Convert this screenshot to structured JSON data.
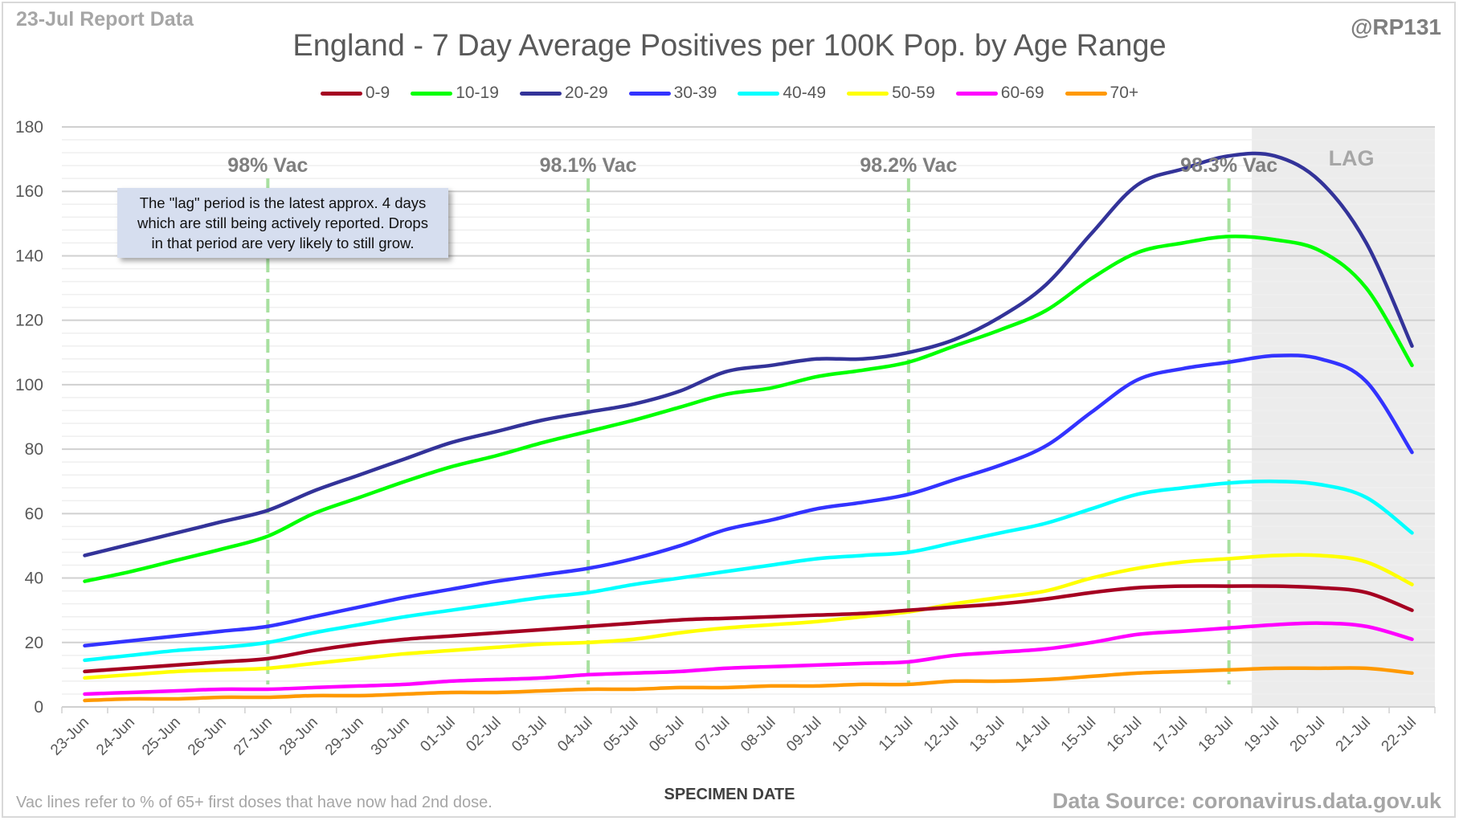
{
  "header": {
    "report_label": "23-Jul Report Data",
    "handle": "@RP131"
  },
  "footer": {
    "note": "Vac lines refer to % of 65+ first doses that have now had 2nd dose.",
    "source": "Data Source: coronavirus.data.gov.uk"
  },
  "annotation": {
    "lines": [
      "The \"lag\" period is the latest approx. 4 days",
      "which are still being actively reported. Drops",
      "in that period are very likely to still grow."
    ]
  },
  "chart_data": {
    "type": "line",
    "title": "England - 7 Day Average Positives per 100K Pop. by Age Range",
    "xlabel": "SPECIMEN DATE",
    "ylabel": "",
    "ylim": [
      0,
      180
    ],
    "yticks": [
      0,
      20,
      40,
      60,
      80,
      100,
      120,
      140,
      160,
      180
    ],
    "grid": true,
    "legend_position": "top",
    "categories": [
      "23-Jun",
      "24-Jun",
      "25-Jun",
      "26-Jun",
      "27-Jun",
      "28-Jun",
      "29-Jun",
      "30-Jun",
      "01-Jul",
      "02-Jul",
      "03-Jul",
      "04-Jul",
      "05-Jul",
      "06-Jul",
      "07-Jul",
      "08-Jul",
      "09-Jul",
      "10-Jul",
      "11-Jul",
      "12-Jul",
      "13-Jul",
      "14-Jul",
      "15-Jul",
      "16-Jul",
      "17-Jul",
      "18-Jul",
      "19-Jul",
      "20-Jul",
      "21-Jul",
      "22-Jul"
    ],
    "series": [
      {
        "name": "0-9",
        "color": "#a50021",
        "values": [
          11,
          12,
          13,
          14,
          15,
          17.5,
          19.5,
          21,
          22,
          23,
          24,
          25,
          26,
          27,
          27.5,
          28,
          28.5,
          29,
          30,
          31,
          32,
          33.5,
          35.5,
          37,
          37.5,
          37.5,
          37.5,
          37,
          35.5,
          30
        ]
      },
      {
        "name": "10-19",
        "color": "#00ff00",
        "values": [
          39,
          42,
          45.5,
          49,
          53,
          60,
          65,
          70,
          74.5,
          78,
          82,
          85.5,
          89,
          93,
          97,
          99,
          102.5,
          104.5,
          107,
          112,
          117,
          123,
          133,
          141,
          144,
          146,
          145,
          141.5,
          130,
          106
        ]
      },
      {
        "name": "20-29",
        "color": "#333399",
        "values": [
          47,
          50.5,
          54,
          57.5,
          61,
          67,
          72,
          77,
          82,
          85.5,
          89,
          91.5,
          94,
          98,
          104,
          106,
          108,
          108,
          110,
          114,
          121,
          131,
          147,
          162,
          167,
          171,
          171,
          163,
          144,
          112
        ]
      },
      {
        "name": "30-39",
        "color": "#3333ff",
        "values": [
          19,
          20.5,
          22,
          23.5,
          25,
          28,
          31,
          34,
          36.5,
          39,
          41,
          43,
          46,
          50,
          55,
          58,
          61.5,
          63.5,
          66,
          70.5,
          75,
          81,
          91.5,
          101.5,
          105,
          107,
          109,
          108,
          101,
          79
        ]
      },
      {
        "name": "40-49",
        "color": "#00ffff",
        "values": [
          14.5,
          16,
          17.5,
          18.5,
          20,
          23,
          25.5,
          28,
          30,
          32,
          34,
          35.5,
          38,
          40,
          42,
          44,
          46,
          47,
          48,
          51,
          54,
          57,
          61.5,
          66,
          68,
          69.5,
          70,
          69,
          65,
          54
        ]
      },
      {
        "name": "50-59",
        "color": "#ffff00",
        "values": [
          9,
          10,
          11,
          11.5,
          12,
          13.5,
          15,
          16.5,
          17.5,
          18.5,
          19.5,
          20,
          21,
          23,
          24.5,
          25.5,
          26.5,
          28,
          29.5,
          32,
          34,
          36,
          40,
          43,
          45,
          46,
          47,
          47,
          45,
          38
        ]
      },
      {
        "name": "60-69",
        "color": "#ff00ff",
        "values": [
          4,
          4.5,
          5,
          5.5,
          5.5,
          6,
          6.5,
          7,
          8,
          8.5,
          9,
          10,
          10.5,
          11,
          12,
          12.5,
          13,
          13.5,
          14,
          16,
          17,
          18,
          20,
          22.5,
          23.5,
          24.5,
          25.5,
          26,
          25,
          21
        ]
      },
      {
        "name": "70+",
        "color": "#ff9900",
        "values": [
          2,
          2.5,
          2.5,
          3,
          3,
          3.5,
          3.5,
          4,
          4.5,
          4.5,
          5,
          5.5,
          5.5,
          6,
          6,
          6.5,
          6.5,
          7,
          7,
          8,
          8,
          8.5,
          9.5,
          10.5,
          11,
          11.5,
          12,
          12,
          12,
          10.5
        ]
      }
    ],
    "vac_lines": [
      {
        "label": "98% Vac",
        "date": "27-Jun"
      },
      {
        "label": "98.1% Vac",
        "date": "04-Jul"
      },
      {
        "label": "98.2% Vac",
        "date": "11-Jul"
      },
      {
        "label": "98.3% Vac",
        "date": "18-Jul"
      }
    ],
    "lag_region": {
      "label": "LAG",
      "from": "19-Jul",
      "to": "22-Jul"
    }
  }
}
